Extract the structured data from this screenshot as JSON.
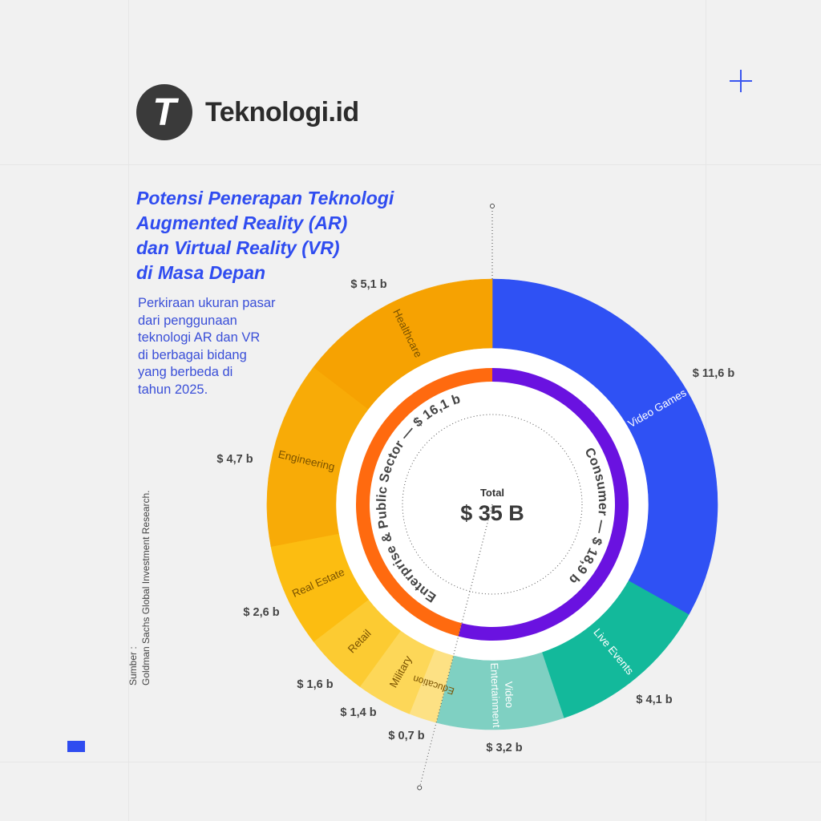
{
  "brand": {
    "logo_letter": "T",
    "name": "Teknologi.id"
  },
  "title_lines": [
    "Potensi Penerapan Teknologi",
    "Augmented Reality (AR)",
    "dan Virtual Reality (VR)",
    "di Masa Depan"
  ],
  "subtitle_lines": [
    "Perkiraan ukuran pasar",
    "dari penggunaan",
    "teknologi AR dan VR",
    "di berbagai bidang",
    "yang berbeda di",
    "tahun 2025."
  ],
  "source_lines": [
    "Sumber :",
    "Goldman Sachs Global Investment Research."
  ],
  "icons": [
    "plus-icon",
    "blue-rectangle"
  ],
  "chart_data": {
    "type": "pie",
    "subtype": "nested-donut",
    "unit": "$ billion",
    "center_label": "Total",
    "center_value": "$ 35 B",
    "total": 35,
    "inner": [
      {
        "name": "Consumer",
        "label": "Consumer — $ 18,9 b",
        "value": 18.9,
        "color": "#6a12e0"
      },
      {
        "name": "Enterprise & Public Sector",
        "label": "Enterprise & Public Sector — $ 16,1 b",
        "value": 16.1,
        "color": "#ff6a0f"
      }
    ],
    "outer": [
      {
        "name": "Video Games",
        "value": 11.6,
        "value_label": "$ 11,6 b",
        "color": "#2f51f4"
      },
      {
        "name": "Live Events",
        "value": 4.1,
        "value_label": "$ 4,1 b",
        "color": "#13b99b"
      },
      {
        "name": "Video Entertainment",
        "value": 3.2,
        "value_label": "$ 3,2 b",
        "color": "#7fd0c2"
      },
      {
        "name": "Education",
        "value": 0.7,
        "value_label": "$ 0,7 b",
        "color": "#fde184"
      },
      {
        "name": "Military",
        "value": 1.4,
        "value_label": "$ 1,4 b",
        "color": "#fdd758"
      },
      {
        "name": "Retail",
        "value": 1.6,
        "value_label": "$ 1,6 b",
        "color": "#fccb32"
      },
      {
        "name": "Real Estate",
        "value": 2.6,
        "value_label": "$ 2,6 b",
        "color": "#fcbd11"
      },
      {
        "name": "Engineering",
        "value": 4.7,
        "value_label": "$ 4,7 b",
        "color": "#f8ab07"
      },
      {
        "name": "Healthcare",
        "value": 5.1,
        "value_label": "$ 5,1 b",
        "color": "#f6a202"
      }
    ]
  }
}
